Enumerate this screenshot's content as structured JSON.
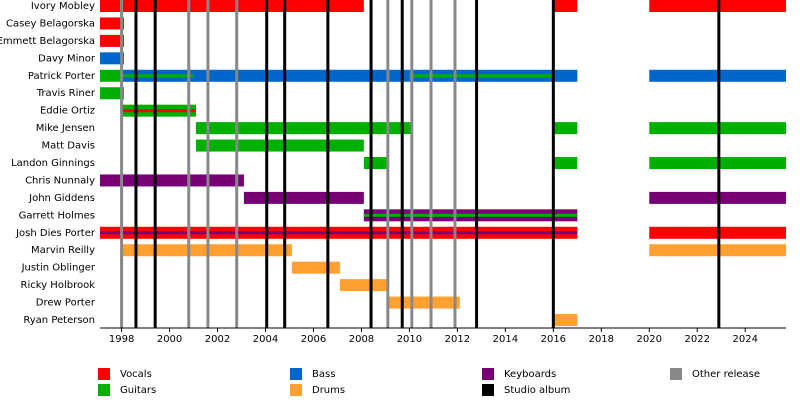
{
  "chart_data": {
    "type": "timeline",
    "xlim": [
      1997.1,
      2025.7
    ],
    "xticks": [
      1998,
      2000,
      2002,
      2004,
      2006,
      2008,
      2010,
      2012,
      2014,
      2016,
      2018,
      2020,
      2022,
      2024
    ],
    "legend": [
      {
        "name": "Vocals",
        "color": "#ff0000"
      },
      {
        "name": "Guitars",
        "color": "#00b000"
      },
      {
        "name": "Bass",
        "color": "#0066cc"
      },
      {
        "name": "Drums",
        "color": "#ffa030"
      },
      {
        "name": "Keyboards",
        "color": "#770077"
      },
      {
        "name": "Studio album",
        "color": "#000000"
      },
      {
        "name": "Other release",
        "color": "#888888"
      }
    ],
    "studio_albums": {
      "color": "#000000",
      "x": [
        1998.6,
        1999.4,
        2004.05,
        2004.8,
        2006.6,
        2008.4,
        2009.7,
        2012.8,
        2016.0,
        2022.9
      ]
    },
    "other_releases": {
      "color": "#888888",
      "x": [
        1998.0,
        2000.8,
        2001.6,
        2002.8,
        2009.1,
        2010.1,
        2010.9,
        2011.9
      ]
    },
    "members": [
      {
        "name": "Ivory Mobley",
        "bars": [
          {
            "start": 1997.1,
            "end": 2008.1,
            "color": "#ff0000"
          },
          {
            "start": 2016.0,
            "end": 2017.0,
            "color": "#ff0000"
          },
          {
            "start": 2020.0,
            "end": 2025.7,
            "color": "#ff0000"
          }
        ]
      },
      {
        "name": "Casey Belagorska",
        "bars": [
          {
            "start": 1997.1,
            "end": 1998.1,
            "color": "#ff0000"
          }
        ]
      },
      {
        "name": "Emmett Belagorska",
        "bars": [
          {
            "start": 1997.1,
            "end": 1998.1,
            "color": "#ff0000"
          }
        ]
      },
      {
        "name": "Davy Minor",
        "bars": [
          {
            "start": 1997.1,
            "end": 1998.1,
            "color": "#0066cc"
          }
        ]
      },
      {
        "name": "Patrick Porter",
        "bars": [
          {
            "start": 1997.1,
            "end": 1998.0,
            "color": "#00b000"
          },
          {
            "start": 1998.0,
            "end": 2001.0,
            "color": "#0066cc",
            "stripe": "#00b000"
          },
          {
            "start": 2001.0,
            "end": 2010.0,
            "color": "#0066cc"
          },
          {
            "start": 2010.0,
            "end": 2016.0,
            "color": "#0066cc",
            "stripe": "#00b000"
          },
          {
            "start": 2016.0,
            "end": 2017.0,
            "color": "#0066cc"
          },
          {
            "start": 2020.0,
            "end": 2025.7,
            "color": "#0066cc"
          }
        ]
      },
      {
        "name": "Travis Riner",
        "bars": [
          {
            "start": 1997.1,
            "end": 1998.1,
            "color": "#00b000"
          }
        ]
      },
      {
        "name": "Eddie Ortiz",
        "bars": [
          {
            "start": 1998.0,
            "end": 2001.1,
            "color": "#00b000",
            "stripe": "#ff0000"
          }
        ]
      },
      {
        "name": "Mike Jensen",
        "bars": [
          {
            "start": 2001.1,
            "end": 2010.1,
            "color": "#00b000"
          },
          {
            "start": 2016.0,
            "end": 2017.0,
            "color": "#00b000"
          },
          {
            "start": 2020.0,
            "end": 2025.7,
            "color": "#00b000"
          }
        ]
      },
      {
        "name": "Matt Davis",
        "bars": [
          {
            "start": 2001.1,
            "end": 2008.1,
            "color": "#00b000"
          }
        ]
      },
      {
        "name": "Landon Ginnings",
        "bars": [
          {
            "start": 2008.1,
            "end": 2009.1,
            "color": "#00b000"
          },
          {
            "start": 2016.0,
            "end": 2017.0,
            "color": "#00b000"
          },
          {
            "start": 2020.0,
            "end": 2025.7,
            "color": "#00b000"
          }
        ]
      },
      {
        "name": "Chris Nunnaly",
        "bars": [
          {
            "start": 1997.1,
            "end": 2003.1,
            "color": "#770077"
          }
        ]
      },
      {
        "name": "John Giddens",
        "bars": [
          {
            "start": 2003.1,
            "end": 2008.1,
            "color": "#770077"
          },
          {
            "start": 2020.0,
            "end": 2025.7,
            "color": "#770077"
          }
        ]
      },
      {
        "name": "Garrett Holmes",
        "bars": [
          {
            "start": 2008.1,
            "end": 2017.0,
            "color": "#770077",
            "stripe": "#00b000"
          }
        ]
      },
      {
        "name": "Josh Dies Porter",
        "bars": [
          {
            "start": 1997.1,
            "end": 2017.0,
            "color": "#ff0000",
            "stripe": "#770077"
          },
          {
            "start": 2020.0,
            "end": 2025.7,
            "color": "#ff0000"
          }
        ]
      },
      {
        "name": "Marvin Reilly",
        "bars": [
          {
            "start": 1998.0,
            "end": 2005.1,
            "color": "#ffa030"
          },
          {
            "start": 2020.0,
            "end": 2025.7,
            "color": "#ffa030"
          }
        ]
      },
      {
        "name": "Justin Oblinger",
        "bars": [
          {
            "start": 2005.1,
            "end": 2007.1,
            "color": "#ffa030"
          }
        ]
      },
      {
        "name": "Ricky Holbrook",
        "bars": [
          {
            "start": 2007.1,
            "end": 2009.1,
            "color": "#ffa030"
          }
        ]
      },
      {
        "name": "Drew Porter",
        "bars": [
          {
            "start": 2009.1,
            "end": 2012.1,
            "color": "#ffa030"
          }
        ]
      },
      {
        "name": "Ryan Peterson",
        "bars": [
          {
            "start": 2016.0,
            "end": 2017.0,
            "color": "#ffa030"
          }
        ]
      }
    ]
  }
}
